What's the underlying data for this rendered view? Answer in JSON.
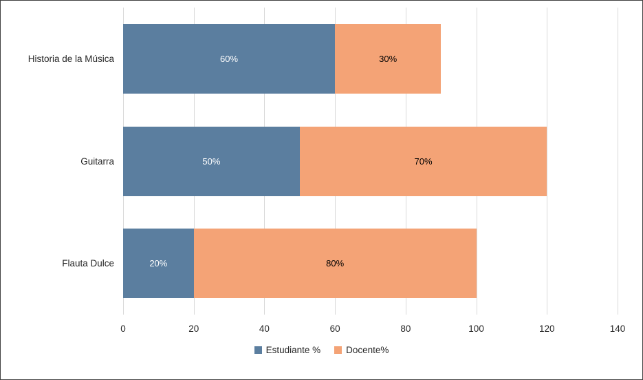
{
  "chart_data": {
    "type": "bar",
    "orientation": "horizontal",
    "stacked": true,
    "title": "",
    "categories": [
      "Historia de la Música",
      "Guitarra",
      "Flauta Dulce"
    ],
    "series": [
      {
        "name": "Estudiante %",
        "color": "#5b7e9f",
        "label_color": "#ffffff",
        "values": [
          60,
          50,
          20
        ],
        "labels": [
          "60%",
          "50%",
          "20%"
        ]
      },
      {
        "name": "Docente%",
        "color": "#f4a376",
        "label_color": "#000000",
        "values": [
          30,
          70,
          80
        ],
        "labels": [
          "30%",
          "70%",
          "80%"
        ]
      }
    ],
    "xlim": [
      0,
      140
    ],
    "x_ticks": [
      "0",
      "20",
      "40",
      "60",
      "80",
      "100",
      "120",
      "140"
    ],
    "grid": "vertical",
    "gridline_color": "#d9d9d9",
    "legend_position": "bottom",
    "background": "#ffffff",
    "border_color": "#404040"
  }
}
